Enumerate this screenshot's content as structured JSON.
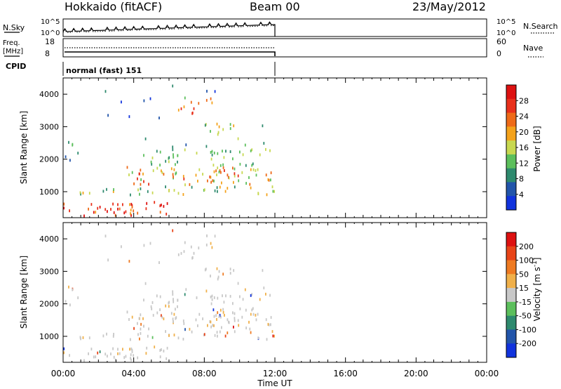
{
  "header": {
    "site": "Hokkaido (fitACF)",
    "beam": "Beam 00",
    "date": "23/May/2012"
  },
  "strip_nsky": {
    "label": "N.Sky",
    "right_label": "N.Search",
    "left_ticks": [
      "10^5",
      "10^0"
    ],
    "right_ticks": [
      "10^5",
      "10^0"
    ]
  },
  "strip_freq": {
    "label_top": "Freq.",
    "label_bottom": "[MHz]",
    "right_label": "Nave",
    "left_ticks": [
      "18",
      "8"
    ],
    "right_ticks": [
      "60",
      "0"
    ]
  },
  "strip_cpid": {
    "label": "CPID",
    "text": "normal (fast) 151"
  },
  "colors": {
    "power_scale": [
      "#1133dd",
      "#2255aa",
      "#2e8a6e",
      "#5cbf5c",
      "#c8d850",
      "#f4a21b",
      "#ee6a18",
      "#e8301b",
      "#dd1111"
    ],
    "velocity_scale": [
      "#1133dd",
      "#2255aa",
      "#2e8a6e",
      "#5cbf5c",
      "#c8c8c8",
      "#f0b04a",
      "#ee7a22",
      "#e84418",
      "#dd1111"
    ],
    "ground_scatter": "#c8c8c8"
  },
  "chart_data": [
    {
      "type": "heatmap",
      "title": "Power",
      "ylabel": "Slant Range [km]",
      "ylim": [
        200,
        4500
      ],
      "xlim": [
        0,
        24
      ],
      "yticks": [
        "1000",
        "2000",
        "3000",
        "4000"
      ],
      "colorbar": {
        "label": "Power [dB]",
        "ticks": [
          "4",
          "8",
          "12",
          "16",
          "20",
          "24",
          "28"
        ],
        "range": [
          0,
          32
        ]
      },
      "data_extent_hours": [
        0,
        12
      ]
    },
    {
      "type": "heatmap",
      "title": "Velocity",
      "ylabel": "Slant Range [km]",
      "ylim": [
        200,
        4500
      ],
      "xlim": [
        0,
        24
      ],
      "yticks": [
        "1000",
        "2000",
        "3000",
        "4000"
      ],
      "xlabel": "Time UT",
      "xticks": [
        "00:00",
        "04:00",
        "08:00",
        "12:00",
        "16:00",
        "20:00",
        "00:00"
      ],
      "colorbar": {
        "label": "Velocity [m s^-1]",
        "ticks": [
          "200",
          "100",
          "50",
          "15",
          "-15",
          "-50",
          "-100",
          "-200"
        ]
      },
      "data_extent_hours": [
        0,
        12
      ]
    }
  ]
}
